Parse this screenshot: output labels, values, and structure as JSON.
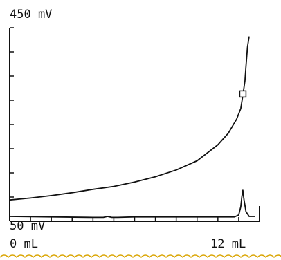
{
  "chart_data": {
    "type": "line",
    "title": "",
    "xlabel": "",
    "ylabel": "",
    "xlim": [
      0,
      12
    ],
    "ylim": [
      50,
      450
    ],
    "labels": {
      "y_max": "450 mV",
      "y_min": "50 mV",
      "x_min": "0 mL",
      "x_max": "12 mL"
    },
    "grid": false,
    "legend": "none",
    "series": [
      {
        "x": [
          0,
          1,
          2,
          3,
          4,
          5,
          6,
          7,
          8,
          9,
          10,
          10.5,
          10.9,
          11.1,
          11.2,
          11.3,
          11.35,
          11.42,
          11.5
        ],
        "y": [
          94,
          98,
          103,
          109,
          116,
          122,
          131,
          142,
          156,
          175,
          208,
          232,
          261,
          283,
          310,
          340,
          370,
          410,
          432
        ],
        "marker": {
          "x": 11.2,
          "y": 313
        }
      },
      {
        "x": [
          0,
          2,
          4,
          4.5,
          4.7,
          4.9,
          5.2,
          6,
          8,
          10,
          10.8,
          11.0,
          11.1,
          11.15,
          11.2,
          11.25,
          11.35,
          11.5,
          11.8
        ],
        "y": [
          60,
          59,
          58,
          58,
          60,
          58,
          58,
          59,
          59,
          59,
          59,
          63,
          80,
          100,
          114,
          96,
          70,
          60,
          60
        ]
      }
    ],
    "colors": {
      "line": "#111111",
      "border": "#d9a400"
    }
  }
}
